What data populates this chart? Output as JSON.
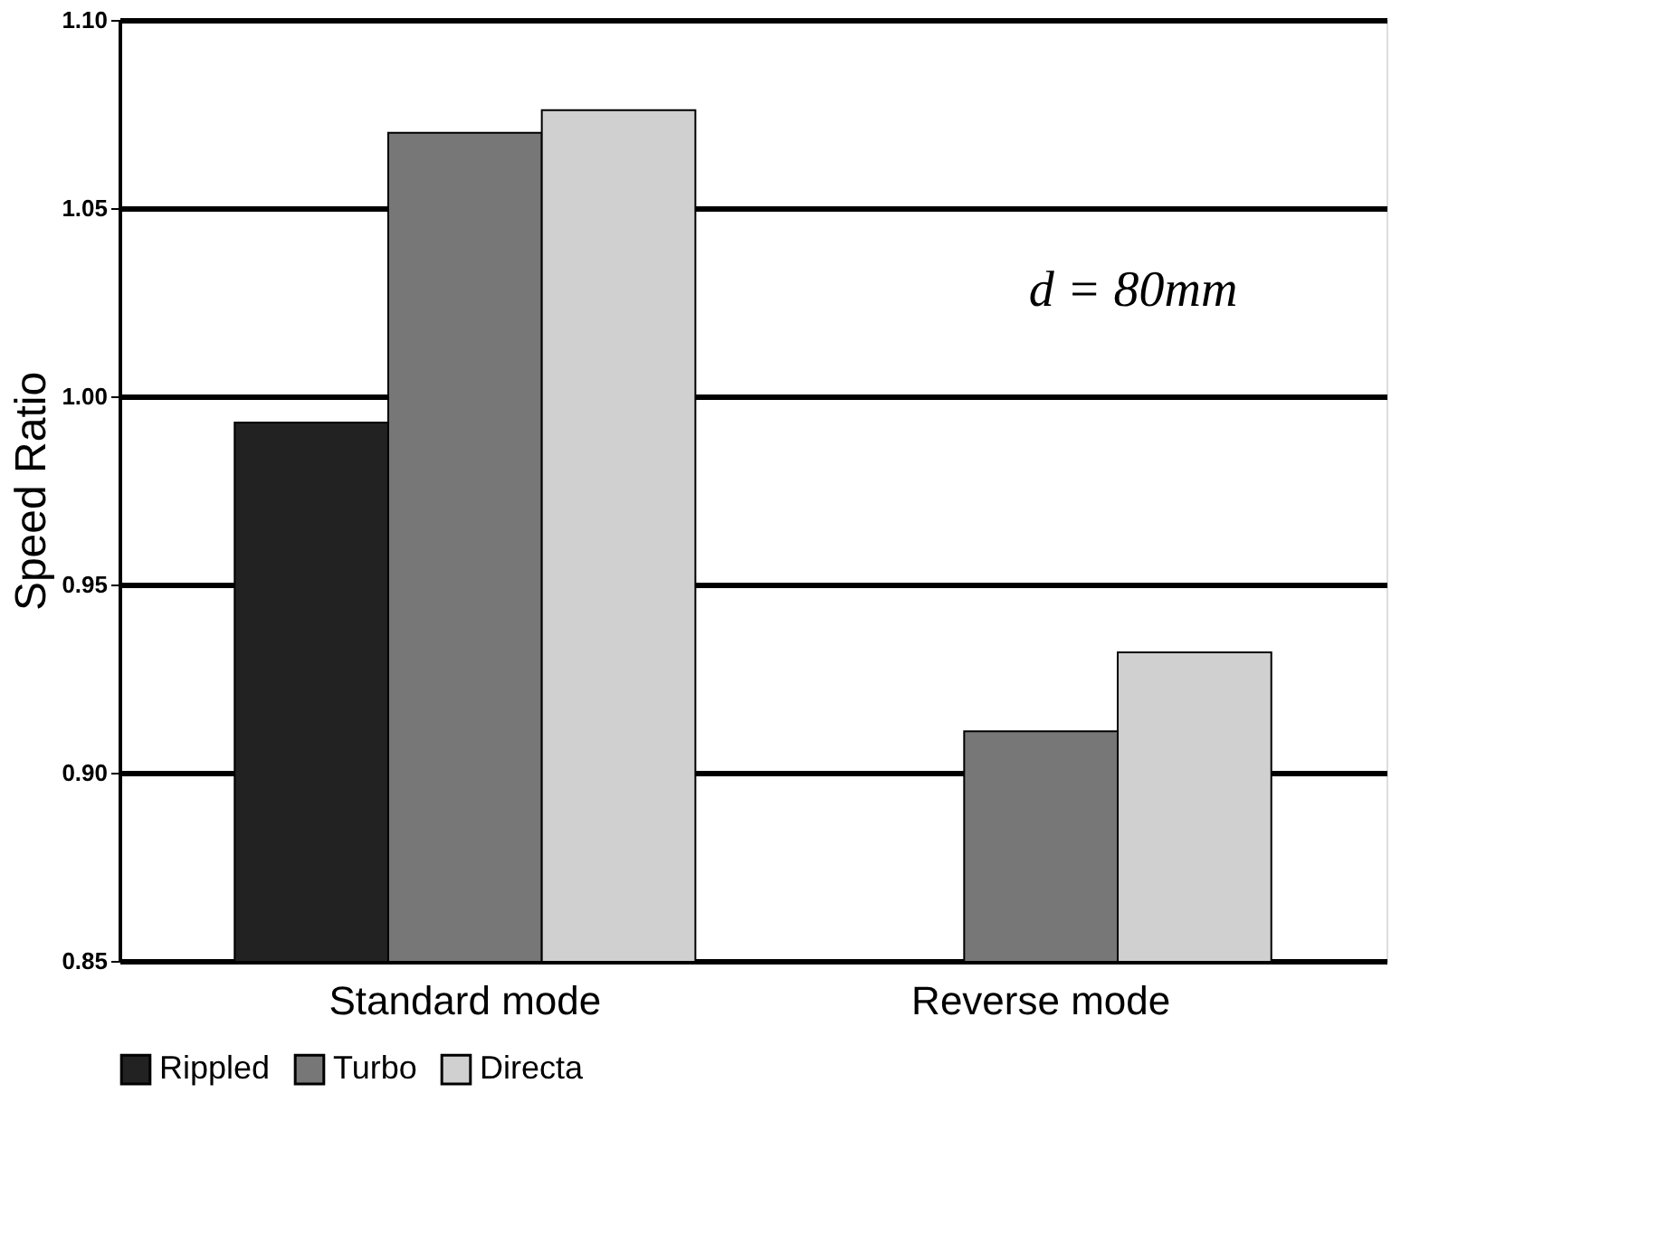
{
  "chart_data": {
    "type": "bar",
    "ylabel": "Speed Ratio",
    "categories": [
      "Standard mode",
      "Reverse mode"
    ],
    "series": [
      {
        "name": "Rippled",
        "color": "#222222",
        "values": [
          0.993,
          null
        ]
      },
      {
        "name": "Turbo",
        "color": "#777777",
        "values": [
          1.07,
          0.911
        ]
      },
      {
        "name": "Directa",
        "color": "#d0d0d0",
        "values": [
          1.076,
          0.932
        ]
      }
    ],
    "ylim": [
      0.85,
      1.1
    ],
    "yticks": [
      0.85,
      {
        "value": 0.9,
        "label": "0.90"
      },
      0.95,
      {
        "value": 1.0,
        "label": "1.00"
      },
      1.05,
      {
        "value": 1.1,
        "label": "1.10"
      }
    ],
    "grid": "y",
    "legend": "bottom",
    "annotations": [
      "d = 80mm"
    ]
  }
}
